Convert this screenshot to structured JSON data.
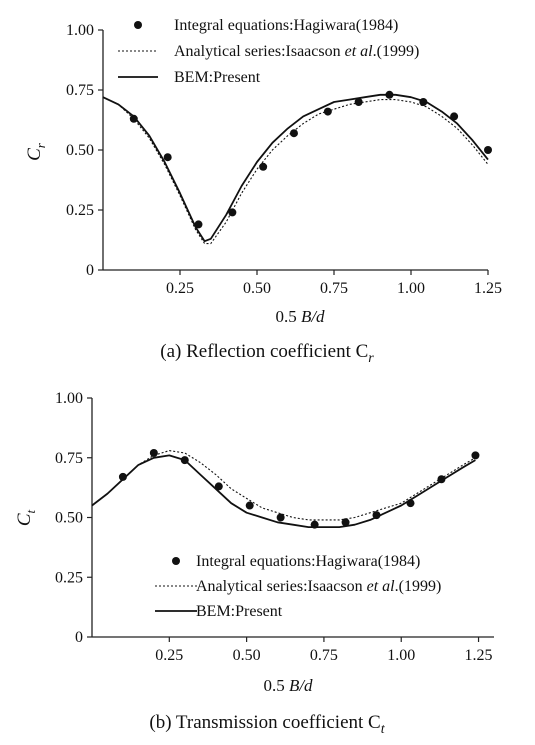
{
  "chart_data": [
    {
      "type": "line",
      "caption": "(a) Reflection coefficient C",
      "caption_sub": "r",
      "xlabel_prefix": "0.5 ",
      "xlabel_italic": "B/d",
      "ylabel_main": "C",
      "ylabel_sub": "r",
      "xlim": [
        0.0,
        1.25
      ],
      "ylim": [
        0,
        1.0
      ],
      "xticks": [
        0.25,
        0.5,
        0.75,
        1.0,
        1.25
      ],
      "xtick_labels": [
        "0.25",
        "0.50",
        "0.75",
        "1.00",
        "1.25"
      ],
      "yticks": [
        0,
        0.25,
        0.5,
        0.75,
        1.0
      ],
      "ytick_labels": [
        "0",
        "0.25",
        "0.50",
        "0.75",
        "1.00"
      ],
      "legend_position": "top",
      "legend": [
        {
          "style": "dot",
          "text": "Integral equations:Hagiwara(1984)"
        },
        {
          "style": "dotted",
          "text_before": "Analytical series:Isaacson ",
          "text_italic": "et al",
          "text_after": ".(1999)"
        },
        {
          "style": "solid",
          "text": "BEM:Present"
        }
      ],
      "series": [
        {
          "style": "dot",
          "x": [
            0.1,
            0.21,
            0.31,
            0.42,
            0.52,
            0.62,
            0.73,
            0.83,
            0.93,
            1.04,
            1.14,
            1.25
          ],
          "y": [
            0.63,
            0.47,
            0.19,
            0.24,
            0.43,
            0.57,
            0.66,
            0.7,
            0.73,
            0.7,
            0.64,
            0.5
          ]
        },
        {
          "style": "dotted",
          "x": [
            0.0,
            0.05,
            0.1,
            0.15,
            0.2,
            0.25,
            0.3,
            0.33,
            0.35,
            0.4,
            0.45,
            0.5,
            0.55,
            0.6,
            0.65,
            0.7,
            0.75,
            0.8,
            0.85,
            0.9,
            0.95,
            1.0,
            1.05,
            1.1,
            1.15,
            1.2,
            1.25
          ],
          "y": [
            0.72,
            0.69,
            0.63,
            0.55,
            0.44,
            0.31,
            0.17,
            0.11,
            0.11,
            0.2,
            0.32,
            0.42,
            0.5,
            0.56,
            0.61,
            0.65,
            0.67,
            0.69,
            0.7,
            0.71,
            0.71,
            0.7,
            0.68,
            0.64,
            0.59,
            0.52,
            0.44
          ]
        },
        {
          "style": "solid",
          "x": [
            0.0,
            0.05,
            0.1,
            0.15,
            0.2,
            0.25,
            0.3,
            0.33,
            0.35,
            0.4,
            0.45,
            0.5,
            0.55,
            0.6,
            0.65,
            0.7,
            0.75,
            0.8,
            0.85,
            0.9,
            0.95,
            1.0,
            1.05,
            1.1,
            1.15,
            1.2,
            1.25
          ],
          "y": [
            0.72,
            0.69,
            0.64,
            0.56,
            0.45,
            0.32,
            0.18,
            0.12,
            0.13,
            0.23,
            0.35,
            0.45,
            0.53,
            0.59,
            0.64,
            0.67,
            0.7,
            0.71,
            0.72,
            0.73,
            0.73,
            0.72,
            0.7,
            0.66,
            0.61,
            0.54,
            0.46
          ]
        }
      ]
    },
    {
      "type": "line",
      "caption": "(b) Transmission coefficient C",
      "caption_sub": "t",
      "xlabel_prefix": "0.5 ",
      "xlabel_italic": "B/d",
      "ylabel_main": "C",
      "ylabel_sub": "t",
      "xlim": [
        0.0,
        1.3
      ],
      "ylim": [
        0,
        1.0
      ],
      "xticks": [
        0.25,
        0.5,
        0.75,
        1.0,
        1.25
      ],
      "xtick_labels": [
        "0.25",
        "0.50",
        "0.75",
        "1.00",
        "1.25"
      ],
      "yticks": [
        0,
        0.25,
        0.5,
        0.75,
        1.0
      ],
      "ytick_labels": [
        "0",
        "0.25",
        "0.50",
        "0.75",
        "1.00"
      ],
      "legend_position": "bottom-right",
      "legend": [
        {
          "style": "dot",
          "text": "Integral equations:Hagiwara(1984)"
        },
        {
          "style": "dotted",
          "text_before": "Analytical series:Isaacson ",
          "text_italic": "et al",
          "text_after": ".(1999)"
        },
        {
          "style": "solid",
          "text": "BEM:Present"
        }
      ],
      "series": [
        {
          "style": "dot",
          "x": [
            0.1,
            0.2,
            0.3,
            0.41,
            0.51,
            0.61,
            0.72,
            0.82,
            0.92,
            1.03,
            1.13,
            1.24
          ],
          "y": [
            0.67,
            0.77,
            0.74,
            0.63,
            0.55,
            0.5,
            0.47,
            0.48,
            0.51,
            0.56,
            0.66,
            0.76
          ]
        },
        {
          "style": "dotted",
          "x": [
            0.0,
            0.05,
            0.1,
            0.15,
            0.2,
            0.25,
            0.3,
            0.35,
            0.4,
            0.45,
            0.5,
            0.55,
            0.6,
            0.65,
            0.7,
            0.75,
            0.8,
            0.85,
            0.9,
            0.95,
            1.0,
            1.05,
            1.1,
            1.15,
            1.2,
            1.24
          ],
          "y": [
            0.55,
            0.6,
            0.66,
            0.72,
            0.76,
            0.78,
            0.77,
            0.73,
            0.68,
            0.62,
            0.58,
            0.54,
            0.52,
            0.5,
            0.49,
            0.49,
            0.49,
            0.5,
            0.52,
            0.54,
            0.56,
            0.6,
            0.64,
            0.68,
            0.72,
            0.75
          ]
        },
        {
          "style": "solid",
          "x": [
            0.0,
            0.05,
            0.1,
            0.15,
            0.2,
            0.25,
            0.3,
            0.35,
            0.4,
            0.45,
            0.5,
            0.55,
            0.6,
            0.65,
            0.7,
            0.75,
            0.8,
            0.85,
            0.9,
            0.95,
            1.0,
            1.05,
            1.1,
            1.15,
            1.2,
            1.24
          ],
          "y": [
            0.55,
            0.6,
            0.66,
            0.72,
            0.75,
            0.76,
            0.74,
            0.68,
            0.62,
            0.56,
            0.52,
            0.5,
            0.48,
            0.47,
            0.46,
            0.46,
            0.46,
            0.47,
            0.49,
            0.52,
            0.55,
            0.59,
            0.63,
            0.67,
            0.71,
            0.74
          ]
        }
      ]
    }
  ]
}
